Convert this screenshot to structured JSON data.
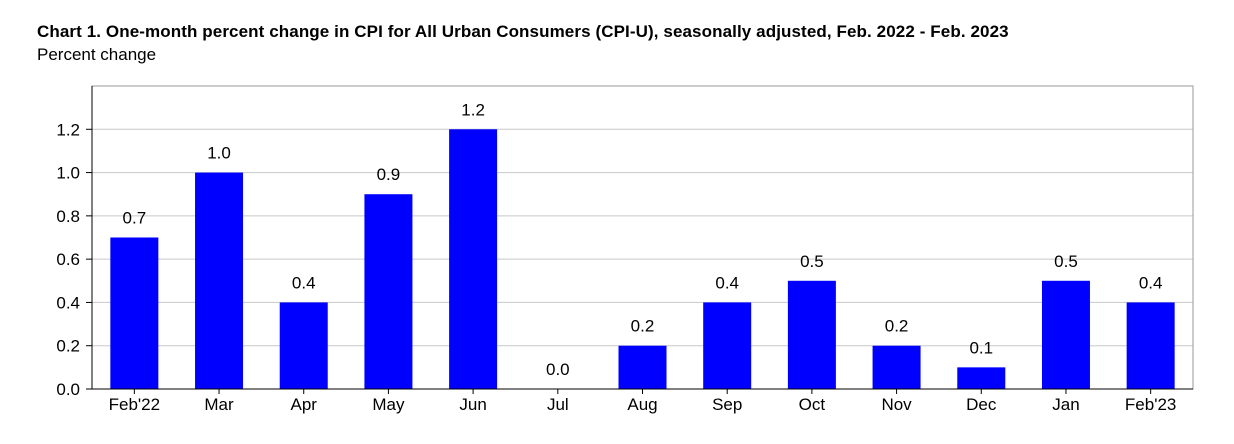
{
  "chart_data": {
    "type": "bar",
    "title": "Chart 1. One-month percent change in CPI for All Urban Consumers (CPI-U), seasonally adjusted, Feb. 2022 - Feb. 2023",
    "subtitle": "Percent change",
    "categories": [
      "Feb'22",
      "Mar",
      "Apr",
      "May",
      "Jun",
      "Jul",
      "Aug",
      "Sep",
      "Oct",
      "Nov",
      "Dec",
      "Jan",
      "Feb'23"
    ],
    "values": [
      0.7,
      1.0,
      0.4,
      0.9,
      1.2,
      0.0,
      0.2,
      0.4,
      0.5,
      0.2,
      0.1,
      0.5,
      0.4
    ],
    "value_labels": [
      "0.7",
      "1.0",
      "0.4",
      "0.9",
      "1.2",
      "0.0",
      "0.2",
      "0.4",
      "0.5",
      "0.2",
      "0.1",
      "0.5",
      "0.4"
    ],
    "yticks": [
      "0.0",
      "0.2",
      "0.4",
      "0.6",
      "0.8",
      "1.0",
      "1.2"
    ],
    "ylim": [
      0,
      1.4
    ],
    "xlabel": "",
    "ylabel": "",
    "grid": true,
    "bar_color": "#0000ff",
    "grid_color": "#c8c8c8",
    "border_color": "#9a9a9a"
  }
}
